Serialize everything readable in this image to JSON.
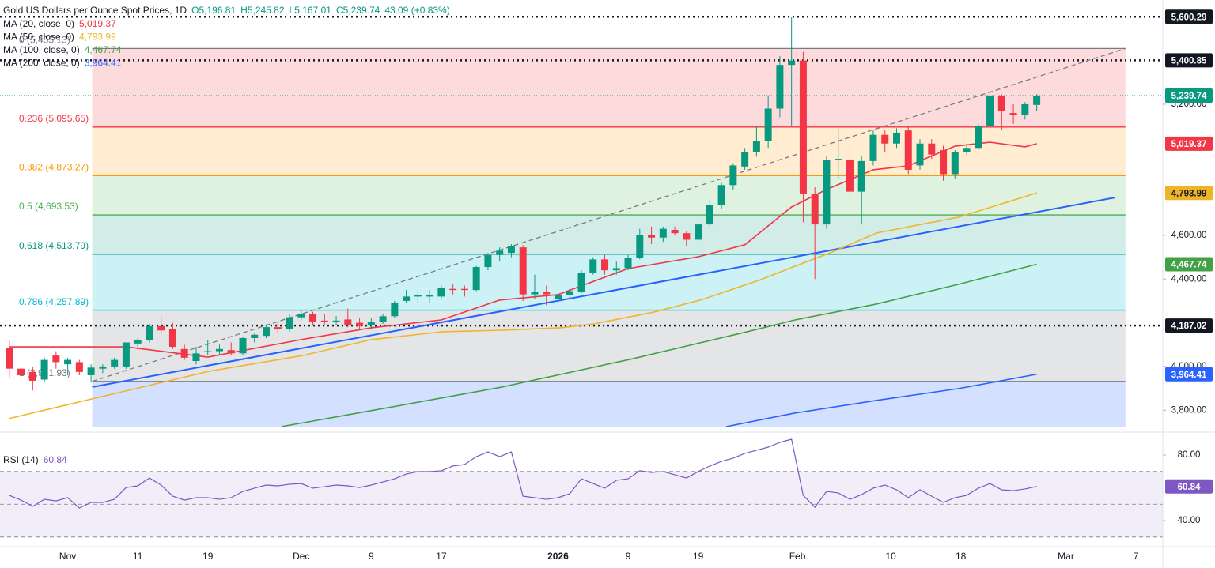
{
  "chart_data": [
    {
      "type": "candlestick",
      "title": "Gold US Dollars per Ounce Spot Prices, 1D",
      "ohlc_legend": [
        "O5,196.81",
        "H5,245.82",
        "L5,167.01",
        "C5,239.74",
        "43.09 (+0.83%)"
      ],
      "xlim": [
        -0.8,
        98.8
      ],
      "xticks": [
        {
          "value": 5,
          "label": "Nov"
        },
        {
          "value": 11,
          "label": "11"
        },
        {
          "value": 17,
          "label": "19"
        },
        {
          "value": 25,
          "label": "Dec"
        },
        {
          "value": 31,
          "label": "9"
        },
        {
          "value": 37,
          "label": "17"
        },
        {
          "value": 47,
          "label": "2026",
          "style": "bold"
        },
        {
          "value": 53,
          "label": "9"
        },
        {
          "value": 59,
          "label": "19"
        },
        {
          "value": 67.5,
          "label": "Feb"
        },
        {
          "value": 75.5,
          "label": "10"
        },
        {
          "value": 81.5,
          "label": "18"
        },
        {
          "value": 90.5,
          "label": "Mar"
        },
        {
          "value": 96.5,
          "label": "7"
        }
      ],
      "ylim": [
        3725,
        5677
      ],
      "yticks": [
        {
          "value": 3800,
          "label": "3,800.00"
        },
        {
          "value": 4000,
          "label": "4,000.00"
        },
        {
          "value": 4400,
          "label": "4,400.00"
        },
        {
          "value": 4600,
          "label": "4,600.00"
        },
        {
          "value": 5200,
          "label": "5,200.00"
        }
      ],
      "up_color": "#089981",
      "down_color": "#f23645",
      "candles": {
        "open": [
          4085,
          3990,
          3975,
          3940,
          4050,
          4010,
          4020,
          3960,
          3990,
          4000,
          4000,
          4105,
          4120,
          4185,
          4170,
          4080,
          4025,
          4065,
          4070,
          4075,
          4060,
          4130,
          4140,
          4180,
          4170,
          4225,
          4240,
          4210,
          4205,
          4215,
          4200,
          4190,
          4205,
          4230,
          4300,
          4320,
          4320,
          4320,
          4355,
          4355,
          4350,
          4455,
          4510,
          4520,
          4545,
          4330,
          4340,
          4310,
          4325,
          4340,
          4430,
          4490,
          4440,
          4450,
          4495,
          4600,
          4590,
          4625,
          4610,
          4580,
          4650,
          4740,
          4830,
          4915,
          4980,
          5030,
          5180,
          5380,
          5400,
          4790,
          4650,
          4945,
          4945,
          4800,
          4940,
          5060,
          5020,
          5080,
          4920,
          5020,
          4990,
          4880,
          4980,
          5000,
          5100,
          5240,
          5160,
          5150,
          5196.81
        ],
        "high": [
          4120,
          4010,
          4000,
          4040,
          4070,
          4040,
          4030,
          4010,
          4010,
          4040,
          4110,
          4130,
          4195,
          4230,
          4200,
          4100,
          4090,
          4120,
          4100,
          4110,
          4135,
          4150,
          4190,
          4200,
          4240,
          4260,
          4250,
          4240,
          4230,
          4265,
          4220,
          4220,
          4240,
          4300,
          4350,
          4350,
          4350,
          4370,
          4380,
          4370,
          4460,
          4520,
          4545,
          4560,
          4555,
          4420,
          4370,
          4340,
          4360,
          4440,
          4500,
          4510,
          4480,
          4510,
          4630,
          4640,
          4640,
          4640,
          4620,
          4660,
          4760,
          4840,
          4930,
          5000,
          5100,
          5240,
          5420,
          5600,
          5440,
          4820,
          4960,
          5090,
          5010,
          4960,
          5080,
          5080,
          5090,
          5100,
          5040,
          5040,
          5010,
          4990,
          5010,
          5110,
          5245,
          5245,
          5200,
          5210,
          5245.82
        ],
        "low": [
          3950,
          3930,
          3890,
          3930,
          3990,
          3960,
          3960,
          3930,
          3970,
          3990,
          3990,
          4085,
          4110,
          4150,
          4080,
          4030,
          4010,
          4050,
          4050,
          4050,
          4050,
          4110,
          4130,
          4155,
          4160,
          4210,
          4190,
          4190,
          4190,
          4180,
          4170,
          4170,
          4195,
          4220,
          4290,
          4290,
          4290,
          4310,
          4330,
          4320,
          4345,
          4440,
          4480,
          4500,
          4300,
          4310,
          4280,
          4300,
          4310,
          4335,
          4420,
          4420,
          4420,
          4440,
          4490,
          4560,
          4570,
          4600,
          4550,
          4570,
          4640,
          4720,
          4810,
          4900,
          4960,
          5000,
          5140,
          5100,
          4660,
          4400,
          4630,
          4860,
          4770,
          4650,
          4920,
          4980,
          5000,
          4880,
          4900,
          4950,
          4850,
          4860,
          4970,
          4990,
          5080,
          5080,
          5110,
          5130,
          5167.01
        ],
        "close": [
          3990,
          3960,
          3935,
          4030,
          4020,
          4030,
          3975,
          3995,
          4000,
          4030,
          4110,
          4120,
          4185,
          4165,
          4090,
          4040,
          4060,
          4070,
          4080,
          4060,
          4130,
          4145,
          4180,
          4170,
          4225,
          4240,
          4205,
          4205,
          4210,
          4190,
          4185,
          4205,
          4230,
          4290,
          4320,
          4325,
          4325,
          4360,
          4350,
          4350,
          4455,
          4510,
          4530,
          4550,
          4330,
          4340,
          4330,
          4325,
          4345,
          4430,
          4490,
          4440,
          4450,
          4495,
          4600,
          4590,
          4630,
          4610,
          4580,
          4650,
          4740,
          4830,
          4920,
          4980,
          5030,
          5180,
          5380,
          5400,
          4790,
          4650,
          4945,
          4950,
          4800,
          4940,
          5060,
          5020,
          5070,
          4900,
          5020,
          4970,
          4880,
          4980,
          5000,
          5100,
          5240,
          5170,
          5150,
          5200,
          5239.74
        ]
      },
      "last_price": {
        "value": 5239.74,
        "label": "5,239.74",
        "color": "#089981"
      },
      "moving_averages": [
        {
          "name": "MA (20, close, 0)",
          "color": "#f23645",
          "value_label": "5,019.37",
          "x": [
            0,
            10,
            17,
            25,
            31,
            37,
            42,
            47,
            53,
            59,
            63,
            67,
            70,
            74,
            77,
            81,
            84,
            87,
            88
          ],
          "values": [
            4090,
            4090,
            4043,
            4123,
            4177,
            4213,
            4304,
            4329,
            4448,
            4502,
            4557,
            4730,
            4810,
            4900,
            4918,
            5008,
            5026,
            5005,
            5019.37
          ]
        },
        {
          "name": "MA (50, close, 0)",
          "color": "#f0b429",
          "label_text_color": "#131722",
          "value_label": "4,793.99",
          "x": [
            0,
            7.1,
            17.1,
            25.1,
            31,
            37.1,
            42.2,
            47.2,
            50.1,
            55.2,
            59.2,
            64.2,
            67.3,
            70.3,
            74.3,
            81.3,
            88
          ],
          "values": [
            3762,
            3852,
            3978,
            4050,
            4123,
            4159,
            4166,
            4177,
            4195,
            4249,
            4304,
            4394,
            4459,
            4520,
            4611,
            4683,
            4793.99
          ]
        },
        {
          "name": "MA (100, close, 0)",
          "color": "#43a047",
          "value_label": "4,467.74",
          "x": [
            23.3,
            31,
            42.2,
            53.2,
            63.2,
            67.3,
            74.3,
            81.3,
            88
          ],
          "values": [
            3725,
            3798,
            3906,
            4033,
            4159,
            4213,
            4286,
            4376,
            4467.74
          ]
        },
        {
          "name": "MA (200, close, 0)",
          "color": "#2962ff",
          "value_label": "3,964.41",
          "x": [
            61.4,
            67.3,
            74.3,
            81.3,
            88
          ],
          "values": [
            3725,
            3787,
            3845,
            3899,
            3964.41
          ]
        }
      ],
      "levels": [
        {
          "value": 5600.29,
          "label": "5,600.29"
        },
        {
          "value": 5400.85,
          "label": "5,400.85"
        },
        {
          "value": 4187.02,
          "label": "4,187.02"
        }
      ],
      "fibonacci": {
        "x": [
          7.1,
          95.6
        ],
        "levels": [
          {
            "label": "0 (5,455.13)",
            "value": 5455.13,
            "color": "#787b86",
            "fill": "rgba(242,54,69,0.18)"
          },
          {
            "label": "0.236 (5,095.65)",
            "value": 5095.65,
            "color": "#f23645",
            "fill": "rgba(255,152,0,0.18)"
          },
          {
            "label": "0.382 (4,873.27)",
            "value": 4873.27,
            "color": "#ff9800",
            "fill": "rgba(76,175,80,0.18)"
          },
          {
            "label": "0.5 (4,693.53)",
            "value": 4693.53,
            "color": "#4caf50",
            "fill": "rgba(8,153,129,0.18)"
          },
          {
            "label": "0.618 (4,513.79)",
            "value": 4513.79,
            "color": "#089981",
            "fill": "rgba(0,188,212,0.2)"
          },
          {
            "label": "0.786 (4,257.89)",
            "value": 4257.89,
            "color": "#00bcd4",
            "fill": "rgba(120,123,134,0.2)"
          },
          {
            "label": "1 (3,931.93)",
            "value": 3931.93,
            "color": "#787b86",
            "fill": "rgba(41,98,255,0.2)"
          }
        ]
      },
      "trendlines": [
        {
          "color": "#787b86",
          "dashed": true,
          "x": [
            7.1,
            95.6
          ],
          "values": [
            3931.93,
            5455.13
          ]
        },
        {
          "color": "#2962ff",
          "dashed": false,
          "x": [
            7.1,
            94.7
          ],
          "values": [
            3906,
            4773
          ]
        }
      ]
    },
    {
      "type": "line",
      "title": "RSI (14)",
      "value_label": "60.84",
      "color": "#7e57c2",
      "ylim": [
        25.1,
        90.1
      ],
      "yticks": [
        {
          "value": 80,
          "label": "80.00"
        },
        {
          "value": 40,
          "label": "40.00"
        }
      ],
      "bands": [
        70,
        50,
        30
      ],
      "values": [
        55.4,
        52.5,
        48.7,
        53.0,
        52.0,
        54.0,
        47.7,
        51.1,
        51.1,
        53.0,
        60.2,
        61.2,
        66.0,
        61.7,
        54.9,
        52.5,
        54.0,
        54.0,
        53.0,
        54.0,
        57.8,
        59.8,
        61.7,
        61.2,
        62.2,
        62.6,
        59.8,
        60.7,
        61.7,
        61.2,
        60.2,
        61.7,
        63.6,
        65.5,
        68.4,
        69.9,
        69.9,
        70.4,
        73.3,
        74.2,
        79.0,
        81.9,
        79.0,
        81.9,
        54.9,
        54.0,
        53.0,
        54.0,
        56.4,
        65.5,
        62.6,
        59.8,
        64.6,
        65.5,
        70.4,
        69.4,
        69.9,
        68.0,
        66.0,
        69.9,
        73.3,
        76.1,
        78.1,
        81.0,
        82.9,
        84.8,
        87.7,
        89.6,
        55.4,
        48.2,
        57.8,
        56.9,
        53.0,
        55.9,
        59.8,
        61.7,
        58.8,
        54.0,
        58.8,
        54.9,
        51.1,
        54.0,
        55.4,
        59.8,
        62.6,
        58.8,
        58.3,
        59.3,
        60.84
      ]
    }
  ]
}
